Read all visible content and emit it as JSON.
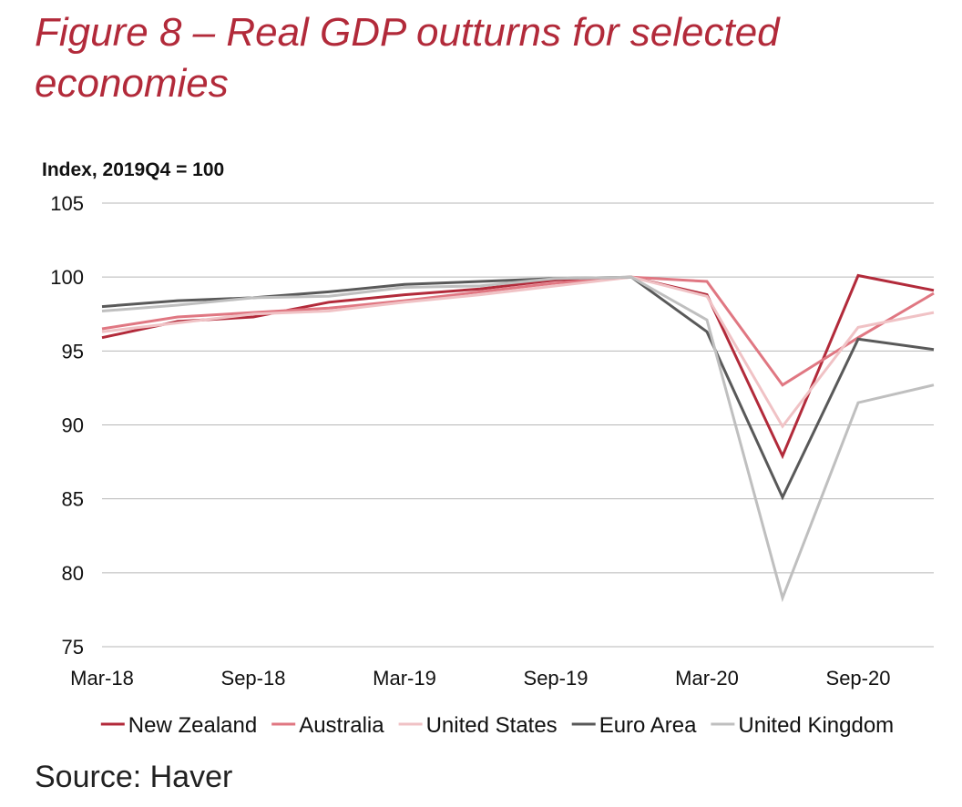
{
  "title": "Figure 8 – Real GDP outturns for selected economies",
  "source": "Source: Haver",
  "colors": {
    "title": "#b22a3a",
    "grid": "#b7b7b7"
  },
  "chart_data": {
    "type": "line",
    "ylabel": "Index, 2019Q4 = 100",
    "xlabel": "",
    "ylim": [
      75,
      105
    ],
    "yticks": [
      105,
      100,
      95,
      90,
      85,
      80,
      75
    ],
    "x": [
      "Mar-18",
      "Jun-18",
      "Sep-18",
      "Dec-18",
      "Mar-19",
      "Jun-19",
      "Sep-19",
      "Dec-19",
      "Mar-20",
      "Jun-20",
      "Sep-20",
      "Dec-20"
    ],
    "xtick_labels": [
      "Mar-18",
      "Sep-18",
      "Mar-19",
      "Sep-19",
      "Mar-20",
      "Sep-20"
    ],
    "grid": true,
    "legend_position": "bottom",
    "series": [
      {
        "name": "New Zealand",
        "color": "#b22a3a",
        "values": [
          95.9,
          97.0,
          97.3,
          98.3,
          98.8,
          99.2,
          99.8,
          100.0,
          98.8,
          87.9,
          100.1,
          99.1
        ]
      },
      {
        "name": "Australia",
        "color": "#e07782",
        "values": [
          96.5,
          97.3,
          97.6,
          97.9,
          98.4,
          99.0,
          99.6,
          100.0,
          99.7,
          92.7,
          95.9,
          98.9
        ]
      },
      {
        "name": "United States",
        "color": "#f0c2c5",
        "values": [
          96.3,
          96.9,
          97.5,
          97.7,
          98.3,
          98.8,
          99.4,
          100.0,
          98.7,
          89.9,
          96.6,
          97.6
        ]
      },
      {
        "name": "Euro Area",
        "color": "#595959",
        "values": [
          98.0,
          98.4,
          98.6,
          99.0,
          99.5,
          99.7,
          99.9,
          100.0,
          96.3,
          85.1,
          95.8,
          95.1
        ]
      },
      {
        "name": "United Kingdom",
        "color": "#bfbfbf",
        "values": [
          97.7,
          98.1,
          98.6,
          98.7,
          99.3,
          99.4,
          99.9,
          100.0,
          97.1,
          78.3,
          91.5,
          92.7
        ]
      }
    ]
  }
}
